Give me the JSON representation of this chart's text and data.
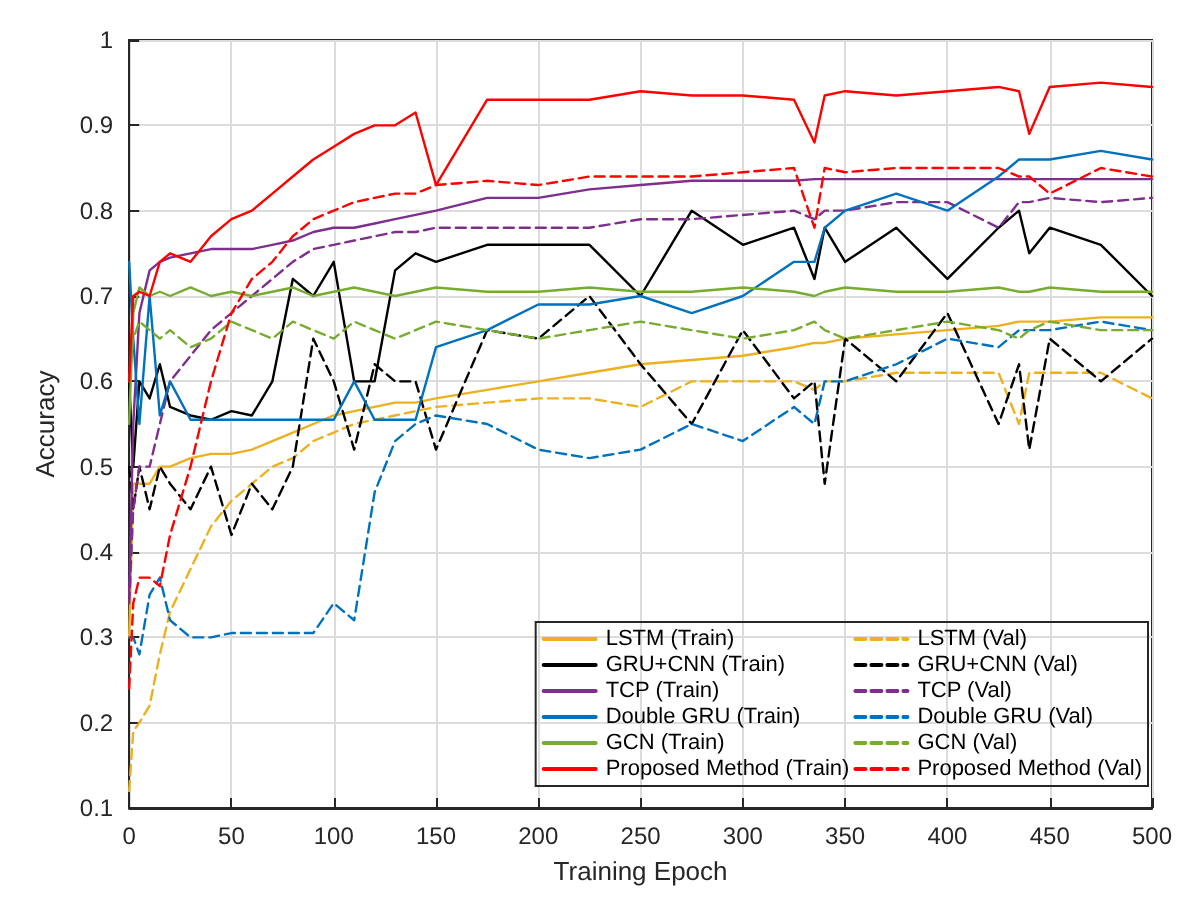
{
  "chart_data": {
    "type": "line",
    "xlabel": "Training Epoch",
    "ylabel": "Accuracy",
    "x": [
      0,
      2,
      5,
      10,
      15,
      20,
      30,
      40,
      50,
      60,
      70,
      80,
      90,
      100,
      110,
      120,
      130,
      140,
      150,
      175,
      200,
      225,
      250,
      275,
      300,
      325,
      335,
      340,
      350,
      375,
      400,
      425,
      435,
      440,
      450,
      475,
      500
    ],
    "xlim": [
      0,
      500
    ],
    "xticks": [
      0,
      50,
      100,
      150,
      200,
      250,
      300,
      350,
      400,
      450,
      500
    ],
    "ylim": [
      0.1,
      1
    ],
    "yticks": [
      0.1,
      0.2,
      0.3,
      0.4,
      0.5,
      0.6,
      0.7,
      0.8,
      0.9,
      1
    ],
    "grid": true,
    "legend": "bottom right",
    "marker": "none",
    "series": [
      {
        "name": "LSTM (Train)",
        "color": "#edb120",
        "line_style": "solid",
        "values": [
          0.3,
          0.48,
          0.48,
          0.48,
          0.5,
          0.5,
          0.51,
          0.515,
          0.515,
          0.52,
          0.53,
          0.54,
          0.55,
          0.56,
          0.565,
          0.57,
          0.575,
          0.575,
          0.58,
          0.59,
          0.6,
          0.61,
          0.62,
          0.625,
          0.63,
          0.64,
          0.645,
          0.645,
          0.65,
          0.655,
          0.66,
          0.665,
          0.67,
          0.67,
          0.67,
          0.675,
          0.675
        ]
      },
      {
        "name": "LSTM (Val)",
        "color": "#edb120",
        "line_style": "dashed",
        "values": [
          0.12,
          0.19,
          0.2,
          0.22,
          0.28,
          0.33,
          0.38,
          0.43,
          0.46,
          0.48,
          0.5,
          0.51,
          0.53,
          0.54,
          0.55,
          0.555,
          0.56,
          0.565,
          0.57,
          0.575,
          0.58,
          0.58,
          0.57,
          0.6,
          0.6,
          0.6,
          0.59,
          0.6,
          0.6,
          0.61,
          0.61,
          0.61,
          0.55,
          0.61,
          0.61,
          0.61,
          0.58
        ]
      },
      {
        "name": "GRU+CNN (Train)",
        "color": "#000000",
        "line_style": "solid",
        "values": [
          0.6,
          0.5,
          0.6,
          0.58,
          0.62,
          0.57,
          0.56,
          0.555,
          0.565,
          0.56,
          0.6,
          0.72,
          0.7,
          0.74,
          0.6,
          0.6,
          0.73,
          0.75,
          0.74,
          0.76,
          0.76,
          0.76,
          0.7,
          0.8,
          0.76,
          0.78,
          0.72,
          0.78,
          0.74,
          0.78,
          0.72,
          0.78,
          0.8,
          0.75,
          0.78,
          0.76,
          0.7
        ]
      },
      {
        "name": "GRU+CNN (Val)",
        "color": "#000000",
        "line_style": "dashed",
        "values": [
          0.5,
          0.45,
          0.5,
          0.45,
          0.5,
          0.48,
          0.45,
          0.5,
          0.42,
          0.48,
          0.45,
          0.5,
          0.65,
          0.6,
          0.52,
          0.62,
          0.6,
          0.6,
          0.52,
          0.66,
          0.65,
          0.7,
          0.62,
          0.55,
          0.66,
          0.58,
          0.6,
          0.48,
          0.65,
          0.6,
          0.68,
          0.55,
          0.62,
          0.52,
          0.65,
          0.6,
          0.65
        ]
      },
      {
        "name": "TCP (Train)",
        "color": "#7e2f8e",
        "line_style": "solid",
        "values": [
          0.35,
          0.55,
          0.68,
          0.73,
          0.74,
          0.745,
          0.75,
          0.755,
          0.755,
          0.755,
          0.76,
          0.765,
          0.775,
          0.78,
          0.78,
          0.785,
          0.79,
          0.795,
          0.8,
          0.815,
          0.815,
          0.825,
          0.83,
          0.835,
          0.835,
          0.835,
          0.837,
          0.837,
          0.837,
          0.837,
          0.837,
          0.837,
          0.837,
          0.837,
          0.837,
          0.837,
          0.837
        ]
      },
      {
        "name": "TCP (Val)",
        "color": "#7e2f8e",
        "line_style": "dashed",
        "values": [
          0.34,
          0.45,
          0.5,
          0.5,
          0.55,
          0.6,
          0.63,
          0.66,
          0.68,
          0.7,
          0.72,
          0.74,
          0.755,
          0.76,
          0.765,
          0.77,
          0.775,
          0.775,
          0.78,
          0.78,
          0.78,
          0.78,
          0.79,
          0.79,
          0.795,
          0.8,
          0.79,
          0.8,
          0.8,
          0.81,
          0.81,
          0.78,
          0.81,
          0.81,
          0.815,
          0.81,
          0.815
        ]
      },
      {
        "name": "Double GRU (Train)",
        "color": "#0072bd",
        "line_style": "solid",
        "values": [
          0.74,
          0.65,
          0.55,
          0.7,
          0.56,
          0.6,
          0.555,
          0.555,
          0.555,
          0.555,
          0.555,
          0.555,
          0.555,
          0.555,
          0.6,
          0.555,
          0.555,
          0.555,
          0.64,
          0.66,
          0.69,
          0.69,
          0.7,
          0.68,
          0.7,
          0.74,
          0.74,
          0.78,
          0.8,
          0.82,
          0.8,
          0.84,
          0.86,
          0.86,
          0.86,
          0.87,
          0.86
        ]
      },
      {
        "name": "Double GRU (Val)",
        "color": "#0072bd",
        "line_style": "dashed",
        "values": [
          0.3,
          0.3,
          0.28,
          0.35,
          0.37,
          0.32,
          0.3,
          0.3,
          0.305,
          0.305,
          0.305,
          0.305,
          0.305,
          0.34,
          0.32,
          0.47,
          0.53,
          0.55,
          0.56,
          0.55,
          0.52,
          0.51,
          0.52,
          0.55,
          0.53,
          0.57,
          0.55,
          0.6,
          0.6,
          0.62,
          0.65,
          0.64,
          0.66,
          0.66,
          0.66,
          0.67,
          0.66
        ]
      },
      {
        "name": "GCN (Train)",
        "color": "#77ac30",
        "line_style": "solid",
        "values": [
          0.55,
          0.68,
          0.71,
          0.7,
          0.705,
          0.7,
          0.71,
          0.7,
          0.705,
          0.7,
          0.705,
          0.71,
          0.7,
          0.705,
          0.71,
          0.705,
          0.7,
          0.705,
          0.71,
          0.705,
          0.705,
          0.71,
          0.705,
          0.705,
          0.71,
          0.705,
          0.7,
          0.705,
          0.71,
          0.705,
          0.705,
          0.71,
          0.705,
          0.705,
          0.71,
          0.705,
          0.705
        ]
      },
      {
        "name": "GCN (Val)",
        "color": "#77ac30",
        "line_style": "dashed",
        "values": [
          0.6,
          0.65,
          0.67,
          0.66,
          0.65,
          0.66,
          0.64,
          0.65,
          0.67,
          0.66,
          0.65,
          0.67,
          0.66,
          0.65,
          0.67,
          0.66,
          0.65,
          0.66,
          0.67,
          0.66,
          0.65,
          0.66,
          0.67,
          0.66,
          0.65,
          0.66,
          0.67,
          0.66,
          0.65,
          0.66,
          0.67,
          0.66,
          0.65,
          0.66,
          0.67,
          0.66,
          0.66
        ]
      },
      {
        "name": "Proposed Method (Train)",
        "color": "#ff0000",
        "line_style": "solid",
        "values": [
          0.6,
          0.7,
          0.705,
          0.7,
          0.74,
          0.75,
          0.74,
          0.77,
          0.79,
          0.8,
          0.82,
          0.84,
          0.86,
          0.875,
          0.89,
          0.9,
          0.9,
          0.915,
          0.83,
          0.93,
          0.93,
          0.93,
          0.94,
          0.935,
          0.935,
          0.93,
          0.88,
          0.935,
          0.94,
          0.935,
          0.94,
          0.945,
          0.94,
          0.89,
          0.945,
          0.95,
          0.945
        ]
      },
      {
        "name": "Proposed Method (Val)",
        "color": "#ff0000",
        "line_style": "dashed",
        "values": [
          0.24,
          0.34,
          0.37,
          0.37,
          0.36,
          0.42,
          0.5,
          0.6,
          0.68,
          0.72,
          0.74,
          0.77,
          0.79,
          0.8,
          0.81,
          0.815,
          0.82,
          0.82,
          0.83,
          0.835,
          0.83,
          0.84,
          0.84,
          0.84,
          0.845,
          0.85,
          0.78,
          0.85,
          0.845,
          0.85,
          0.85,
          0.85,
          0.84,
          0.84,
          0.82,
          0.85,
          0.84
        ]
      }
    ]
  }
}
